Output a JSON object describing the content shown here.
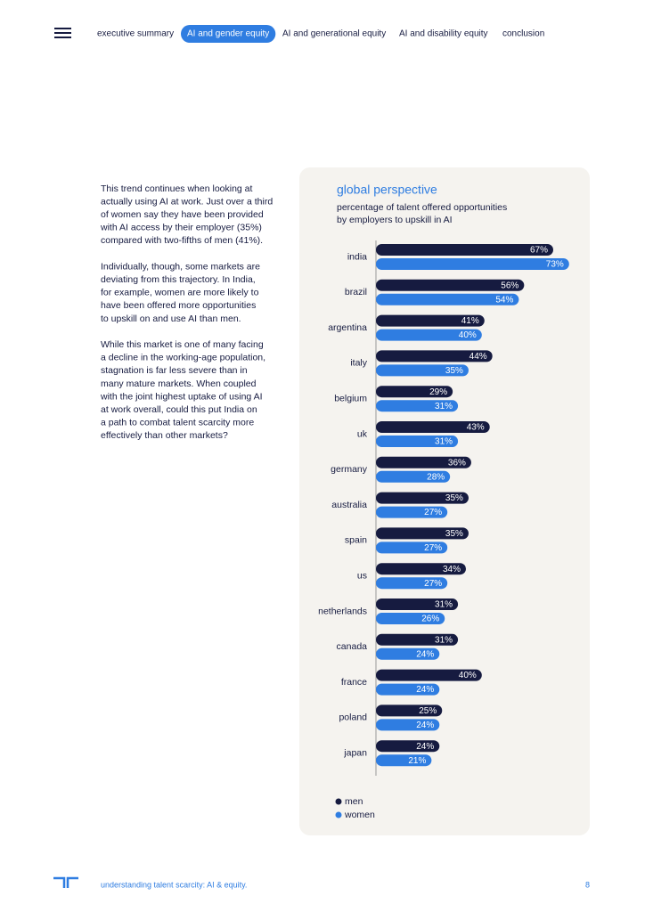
{
  "nav": {
    "items": [
      "executive summary",
      "AI and gender equity",
      "AI and generational equity",
      "AI and disability equity",
      "conclusion"
    ],
    "active": 1
  },
  "body": {
    "paragraphs": [
      [
        "This trend continues when looking at",
        "actually using AI at work. Just over a third",
        "of women say they have been provided",
        "with AI access by their employer (35%)",
        "compared with two-fifths of men (41%)."
      ],
      [
        "Individually, though, some markets are",
        "deviating from this trajectory. In India,",
        "for example, women are more likely to",
        "have been offered more opportunities",
        "to upskill on and use AI than men."
      ],
      [
        "While this market is one of many facing",
        "a decline in the working-age population,",
        "stagnation is far less severe than in",
        "many mature markets. When coupled",
        "with the joint highest uptake of using AI",
        "at work overall, could this put India on",
        "a path to combat talent scarcity more",
        "effectively than other markets?"
      ]
    ]
  },
  "chart_data": {
    "type": "bar",
    "orientation": "horizontal",
    "title": "global perspective",
    "subtitle": [
      "percentage of talent offered opportunities",
      "by employers to upskill in AI"
    ],
    "categories": [
      "india",
      "brazil",
      "argentina",
      "italy",
      "belgium",
      "uk",
      "germany",
      "australia",
      "spain",
      "us",
      "netherlands",
      "canada",
      "france",
      "poland",
      "japan"
    ],
    "series": [
      {
        "name": "men",
        "color": "#161b40",
        "values": [
          67,
          56,
          41,
          44,
          29,
          43,
          36,
          35,
          35,
          34,
          31,
          31,
          40,
          25,
          24
        ],
        "value_labels": [
          "67%",
          "56%",
          "41%",
          "44%",
          "29%",
          "43%",
          "36%",
          "35%",
          "35%",
          "34%",
          "31%",
          "31%",
          "40%",
          "25%",
          "24%"
        ]
      },
      {
        "name": "women",
        "color": "#2f7de1",
        "values": [
          73,
          54,
          40,
          35,
          31,
          31,
          28,
          27,
          27,
          27,
          26,
          24,
          24,
          24,
          21
        ],
        "value_labels": [
          "73%",
          "54%",
          "40%",
          "35%",
          "31%",
          "31%",
          "28%",
          "27%",
          "27%",
          "27%",
          "26%",
          "24%",
          "24%",
          "24%",
          "21%"
        ]
      }
    ]
  },
  "footer": {
    "text": "understanding talent scarcity: AI & equity.",
    "page": "8"
  }
}
